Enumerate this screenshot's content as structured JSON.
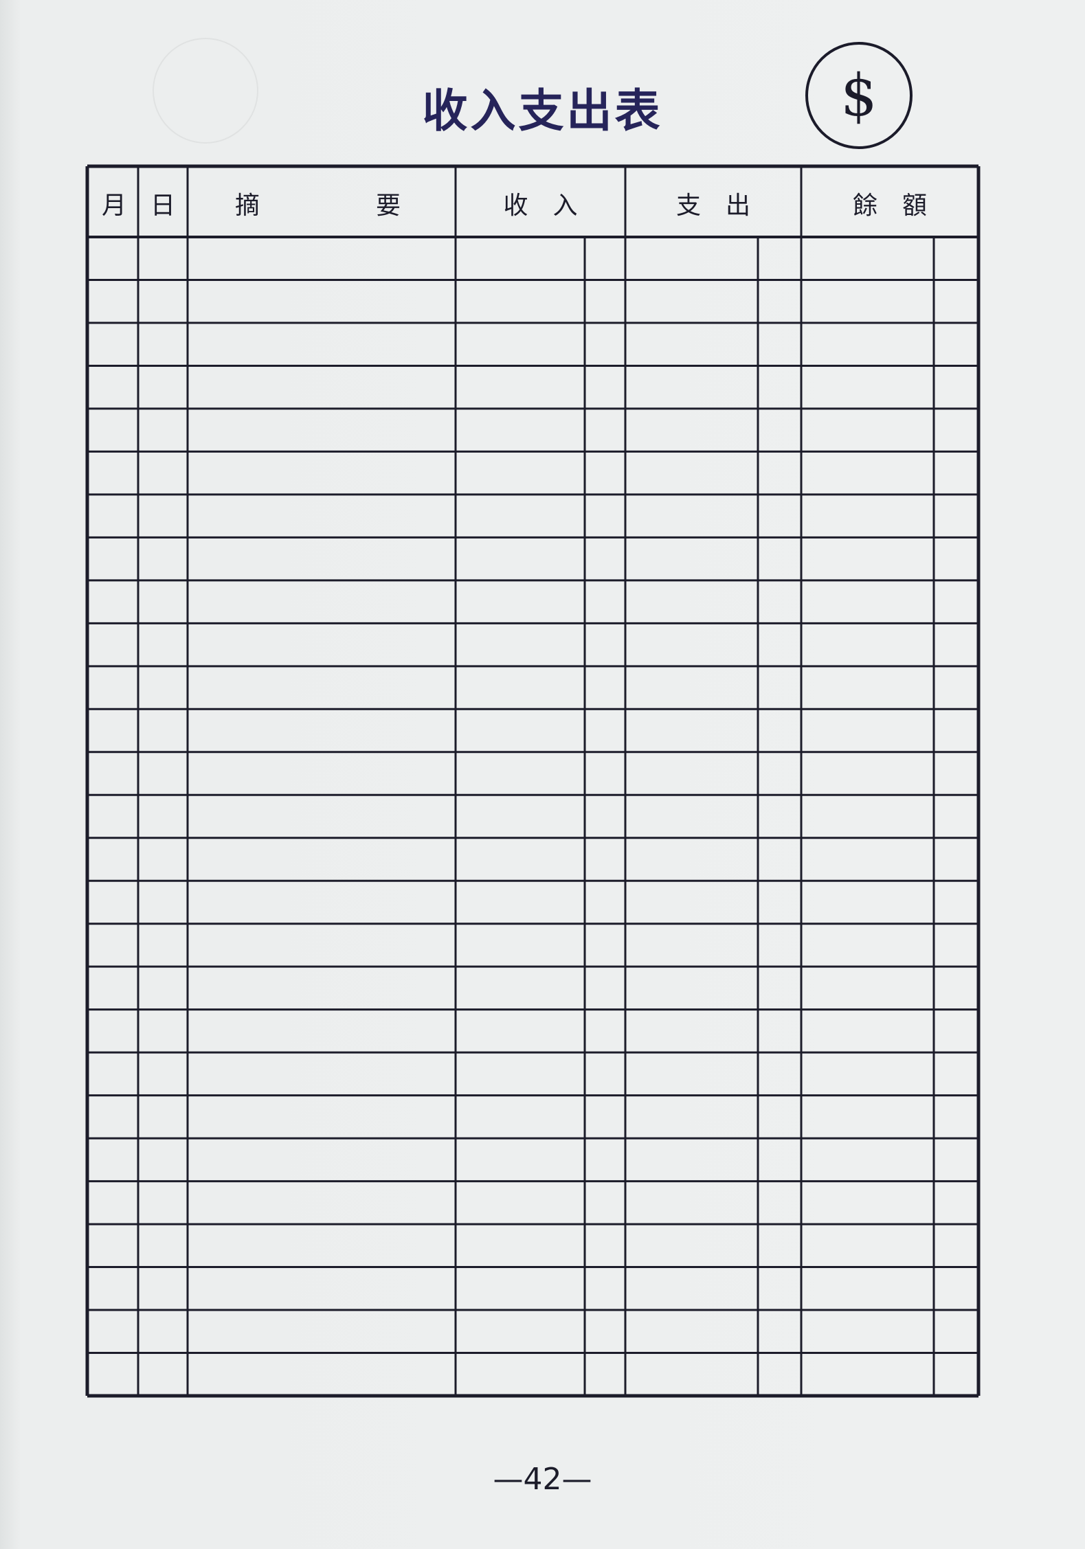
{
  "title": "收入支出表",
  "emblem": "$",
  "table": {
    "headers": [
      "月",
      "日",
      "摘",
      "要",
      "收　入",
      "支　出",
      "餘　額"
    ],
    "row_count": 27
  },
  "page_number": "—42—",
  "colors": {
    "ink": "#1c1c2a",
    "title": "#26245a",
    "paper": "#eceeee"
  }
}
